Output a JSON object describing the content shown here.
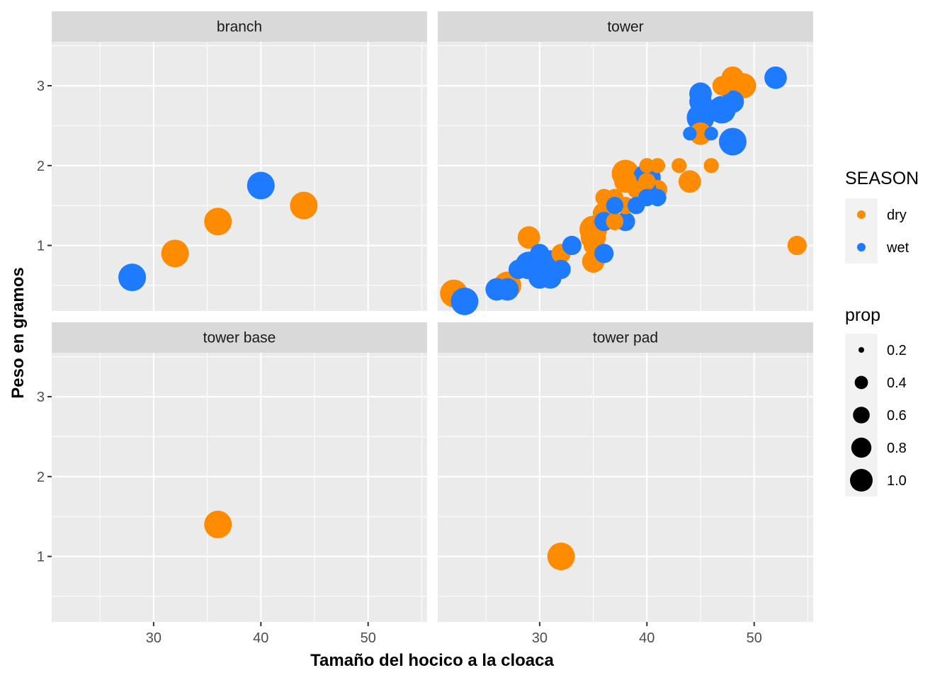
{
  "chart_data": {
    "type": "scatter",
    "xlabel": "Tamaño del hocico a la cloaca",
    "ylabel": "Peso en gramos",
    "xlim": [
      20.5,
      55.5
    ],
    "ylim": [
      0.18,
      3.55
    ],
    "x_ticks": [
      30,
      40,
      50
    ],
    "y_ticks": [
      1,
      2,
      3
    ],
    "grid": true,
    "legend_placement": "right",
    "color_legend": {
      "title": "SEASON",
      "entries": [
        {
          "label": "dry",
          "color": "#ff8c00"
        },
        {
          "label": "wet",
          "color": "#1e7bff"
        }
      ]
    },
    "size_legend": {
      "title": "prop",
      "entries": [
        {
          "label": "0.2",
          "value": 0.2
        },
        {
          "label": "0.4",
          "value": 0.4
        },
        {
          "label": "0.6",
          "value": 0.6
        },
        {
          "label": "0.8",
          "value": 0.8
        },
        {
          "label": "1.0",
          "value": 1.0
        }
      ]
    },
    "panels": [
      {
        "label": "branch",
        "points": [
          {
            "x": 28,
            "y": 0.6,
            "season": "wet",
            "prop": 1.0
          },
          {
            "x": 32,
            "y": 0.9,
            "season": "dry",
            "prop": 1.0
          },
          {
            "x": 36,
            "y": 1.3,
            "season": "dry",
            "prop": 1.0
          },
          {
            "x": 40,
            "y": 1.75,
            "season": "wet",
            "prop": 1.0
          },
          {
            "x": 44,
            "y": 1.5,
            "season": "dry",
            "prop": 1.0
          }
        ]
      },
      {
        "label": "tower",
        "points": [
          {
            "x": 22,
            "y": 0.4,
            "season": "dry",
            "prop": 1.0
          },
          {
            "x": 27,
            "y": 0.5,
            "season": "dry",
            "prop": 1.0
          },
          {
            "x": 29,
            "y": 1.1,
            "season": "dry",
            "prop": 0.6
          },
          {
            "x": 32,
            "y": 0.9,
            "season": "dry",
            "prop": 0.4
          },
          {
            "x": 35,
            "y": 0.8,
            "season": "dry",
            "prop": 0.6
          },
          {
            "x": 35,
            "y": 1.0,
            "season": "dry",
            "prop": 0.4
          },
          {
            "x": 35,
            "y": 1.1,
            "season": "dry",
            "prop": 0.8
          },
          {
            "x": 35,
            "y": 1.2,
            "season": "dry",
            "prop": 1.0
          },
          {
            "x": 36,
            "y": 1.4,
            "season": "dry",
            "prop": 0.6
          },
          {
            "x": 36,
            "y": 1.6,
            "season": "dry",
            "prop": 0.3
          },
          {
            "x": 37,
            "y": 1.3,
            "season": "dry",
            "prop": 0.3
          },
          {
            "x": 37,
            "y": 1.6,
            "season": "dry",
            "prop": 0.3
          },
          {
            "x": 38,
            "y": 1.5,
            "season": "dry",
            "prop": 0.3
          },
          {
            "x": 38,
            "y": 1.8,
            "season": "dry",
            "prop": 0.6
          },
          {
            "x": 38,
            "y": 1.9,
            "season": "dry",
            "prop": 1.0
          },
          {
            "x": 39,
            "y": 1.7,
            "season": "dry",
            "prop": 0.3
          },
          {
            "x": 40,
            "y": 2.0,
            "season": "dry",
            "prop": 0.2
          },
          {
            "x": 40,
            "y": 1.8,
            "season": "dry",
            "prop": 0.3
          },
          {
            "x": 41,
            "y": 1.7,
            "season": "dry",
            "prop": 0.4
          },
          {
            "x": 41,
            "y": 2.0,
            "season": "dry",
            "prop": 0.2
          },
          {
            "x": 43,
            "y": 2.0,
            "season": "dry",
            "prop": 0.2
          },
          {
            "x": 44,
            "y": 1.8,
            "season": "dry",
            "prop": 0.6
          },
          {
            "x": 45,
            "y": 2.4,
            "season": "dry",
            "prop": 0.6
          },
          {
            "x": 46,
            "y": 2.0,
            "season": "dry",
            "prop": 0.2
          },
          {
            "x": 47,
            "y": 3.0,
            "season": "dry",
            "prop": 0.4
          },
          {
            "x": 48,
            "y": 3.1,
            "season": "dry",
            "prop": 0.6
          },
          {
            "x": 48,
            "y": 2.9,
            "season": "dry",
            "prop": 0.6
          },
          {
            "x": 49,
            "y": 3.0,
            "season": "dry",
            "prop": 0.8
          },
          {
            "x": 54,
            "y": 1.0,
            "season": "dry",
            "prop": 0.4
          },
          {
            "x": 23,
            "y": 0.3,
            "season": "wet",
            "prop": 1.0
          },
          {
            "x": 26,
            "y": 0.45,
            "season": "wet",
            "prop": 0.6
          },
          {
            "x": 27,
            "y": 0.45,
            "season": "wet",
            "prop": 0.6
          },
          {
            "x": 28,
            "y": 0.7,
            "season": "wet",
            "prop": 0.4
          },
          {
            "x": 29,
            "y": 0.75,
            "season": "wet",
            "prop": 1.0
          },
          {
            "x": 30,
            "y": 0.6,
            "season": "wet",
            "prop": 0.6
          },
          {
            "x": 30,
            "y": 0.9,
            "season": "wet",
            "prop": 0.4
          },
          {
            "x": 31,
            "y": 0.6,
            "season": "wet",
            "prop": 0.6
          },
          {
            "x": 31,
            "y": 0.8,
            "season": "wet",
            "prop": 0.6
          },
          {
            "x": 32,
            "y": 0.7,
            "season": "wet",
            "prop": 0.4
          },
          {
            "x": 33,
            "y": 1.0,
            "season": "wet",
            "prop": 0.4
          },
          {
            "x": 36,
            "y": 0.9,
            "season": "wet",
            "prop": 0.4
          },
          {
            "x": 36,
            "y": 1.3,
            "season": "wet",
            "prop": 0.4
          },
          {
            "x": 37,
            "y": 1.5,
            "season": "wet",
            "prop": 0.3
          },
          {
            "x": 38,
            "y": 1.3,
            "season": "wet",
            "prop": 0.4
          },
          {
            "x": 39,
            "y": 1.5,
            "season": "wet",
            "prop": 0.3
          },
          {
            "x": 40,
            "y": 1.6,
            "season": "wet",
            "prop": 0.3
          },
          {
            "x": 40,
            "y": 1.7,
            "season": "wet",
            "prop": 0.4
          },
          {
            "x": 40,
            "y": 1.85,
            "season": "wet",
            "prop": 1.0
          },
          {
            "x": 41,
            "y": 1.6,
            "season": "wet",
            "prop": 0.3
          },
          {
            "x": 44,
            "y": 2.4,
            "season": "wet",
            "prop": 0.15
          },
          {
            "x": 45,
            "y": 2.6,
            "season": "wet",
            "prop": 1.0
          },
          {
            "x": 45,
            "y": 2.8,
            "season": "wet",
            "prop": 0.6
          },
          {
            "x": 45,
            "y": 2.9,
            "season": "wet",
            "prop": 0.6
          },
          {
            "x": 46,
            "y": 2.4,
            "season": "wet",
            "prop": 0.15
          },
          {
            "x": 47,
            "y": 2.7,
            "season": "wet",
            "prop": 1.0
          },
          {
            "x": 48,
            "y": 2.3,
            "season": "wet",
            "prop": 1.0
          },
          {
            "x": 48,
            "y": 2.8,
            "season": "wet",
            "prop": 0.6
          },
          {
            "x": 52,
            "y": 3.1,
            "season": "wet",
            "prop": 0.6
          }
        ]
      },
      {
        "label": "tower base",
        "points": [
          {
            "x": 36,
            "y": 1.4,
            "season": "dry",
            "prop": 1.0
          }
        ]
      },
      {
        "label": "tower pad",
        "points": [
          {
            "x": 32,
            "y": 1.0,
            "season": "dry",
            "prop": 1.0
          }
        ]
      }
    ]
  }
}
